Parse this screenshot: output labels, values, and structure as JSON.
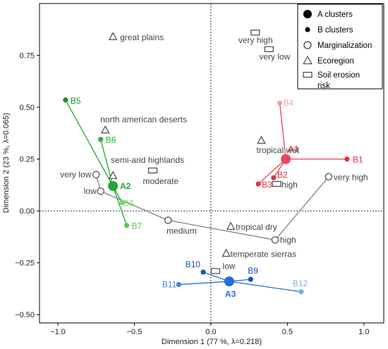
{
  "chart_data": {
    "type": "scatter",
    "title": "",
    "xlabel": "Dimension 1  (77 %, λ=0.218)",
    "ylabel": "Dimension 2  (23 %, λ=0.065)",
    "xlim": [
      -1.12,
      1.13
    ],
    "ylim": [
      -0.54,
      1.0
    ],
    "x_ticks": [
      -1.0,
      -0.5,
      0.0,
      0.5,
      1.0
    ],
    "y_ticks": [
      -0.5,
      -0.25,
      0.0,
      0.25,
      0.5,
      0.75
    ],
    "x_tick_labels": [
      "−1.0",
      "−0.5",
      "0.0",
      "0.5",
      "1.0"
    ],
    "y_tick_labels": [
      "−0.50",
      "−0.25",
      "0.00",
      "0.25",
      "0.50",
      "0.75"
    ],
    "reference_lines": {
      "x": 0,
      "y": 0,
      "style": "dotted"
    },
    "legend": {
      "placement": "top-right",
      "entries": [
        {
          "label": "A clusters",
          "symbol": "big-dot"
        },
        {
          "label": "B clusters",
          "symbol": "small-dot"
        },
        {
          "label": "Marginalization",
          "symbol": "circle"
        },
        {
          "label": "Ecoregion",
          "symbol": "triangle"
        },
        {
          "label": "Soil erosion risk",
          "symbol": "rectangle"
        }
      ]
    },
    "groups": [
      {
        "cluster": "A1",
        "color": "#e8455a",
        "x": 0.49,
        "y": 0.25,
        "members": [
          {
            "label": "B1",
            "x": 0.89,
            "y": 0.25,
            "color": "#e02f45"
          },
          {
            "label": "B2",
            "x": 0.41,
            "y": 0.16,
            "color": "#e02f45"
          },
          {
            "label": "B3",
            "x": 0.31,
            "y": 0.13,
            "color": "#e02f45"
          },
          {
            "label": "B4",
            "x": 0.45,
            "y": 0.52,
            "color": "#f2a0ab"
          }
        ]
      },
      {
        "cluster": "A2",
        "color": "#21a535",
        "x": -0.64,
        "y": 0.12,
        "members": [
          {
            "label": "B5",
            "x": -0.95,
            "y": 0.535,
            "color": "#1f8f2a"
          },
          {
            "label": "B6",
            "x": -0.72,
            "y": 0.345,
            "color": "#28b03c"
          },
          {
            "label": "B8",
            "x": -0.58,
            "y": 0.04,
            "color": "#7fd66e"
          },
          {
            "label": "B7",
            "x": -0.55,
            "y": -0.07,
            "color": "#55c94a"
          }
        ]
      },
      {
        "cluster": "A3",
        "color": "#1f6fd6",
        "x": 0.12,
        "y": -0.34,
        "members": [
          {
            "label": "B10",
            "x": -0.05,
            "y": -0.295,
            "color": "#1a4fb8"
          },
          {
            "label": "B9",
            "x": 0.26,
            "y": -0.33,
            "color": "#1a4fb8"
          },
          {
            "label": "B11",
            "x": -0.21,
            "y": -0.355,
            "color": "#3b86e0"
          },
          {
            "label": "B12",
            "x": 0.59,
            "y": -0.39,
            "color": "#6fb2ec"
          }
        ]
      }
    ],
    "marginalization": [
      {
        "label": "very low",
        "x": -0.75,
        "y": 0.175
      },
      {
        "label": "low",
        "x": -0.72,
        "y": 0.095
      },
      {
        "label": "medium",
        "x": -0.28,
        "y": -0.045
      },
      {
        "label": "high",
        "x": 0.42,
        "y": -0.14
      },
      {
        "label": "very high",
        "x": 0.77,
        "y": 0.165
      }
    ],
    "marginalization_path": [
      "very low",
      "low",
      "medium",
      "high",
      "very high"
    ],
    "ecoregion": [
      {
        "label": "great plains",
        "x": -0.64,
        "y": 0.84
      },
      {
        "label": "north american deserts",
        "x": -0.69,
        "y": 0.39
      },
      {
        "label": "semi-arid highlands",
        "x": -0.64,
        "y": 0.17
      },
      {
        "label": "tropical wet",
        "x": 0.33,
        "y": 0.34
      },
      {
        "label": "tropical dry",
        "x": 0.13,
        "y": -0.075
      },
      {
        "label": "temperate sierras",
        "x": 0.1,
        "y": -0.205
      }
    ],
    "soil_erosion": [
      {
        "label": "very high",
        "x": 0.29,
        "y": 0.86
      },
      {
        "label": "very low",
        "x": 0.38,
        "y": 0.78
      },
      {
        "label": "moderate",
        "x": -0.38,
        "y": 0.195
      },
      {
        "label": "high",
        "x": 0.43,
        "y": 0.13
      },
      {
        "label": "low",
        "x": 0.03,
        "y": -0.29
      }
    ]
  }
}
